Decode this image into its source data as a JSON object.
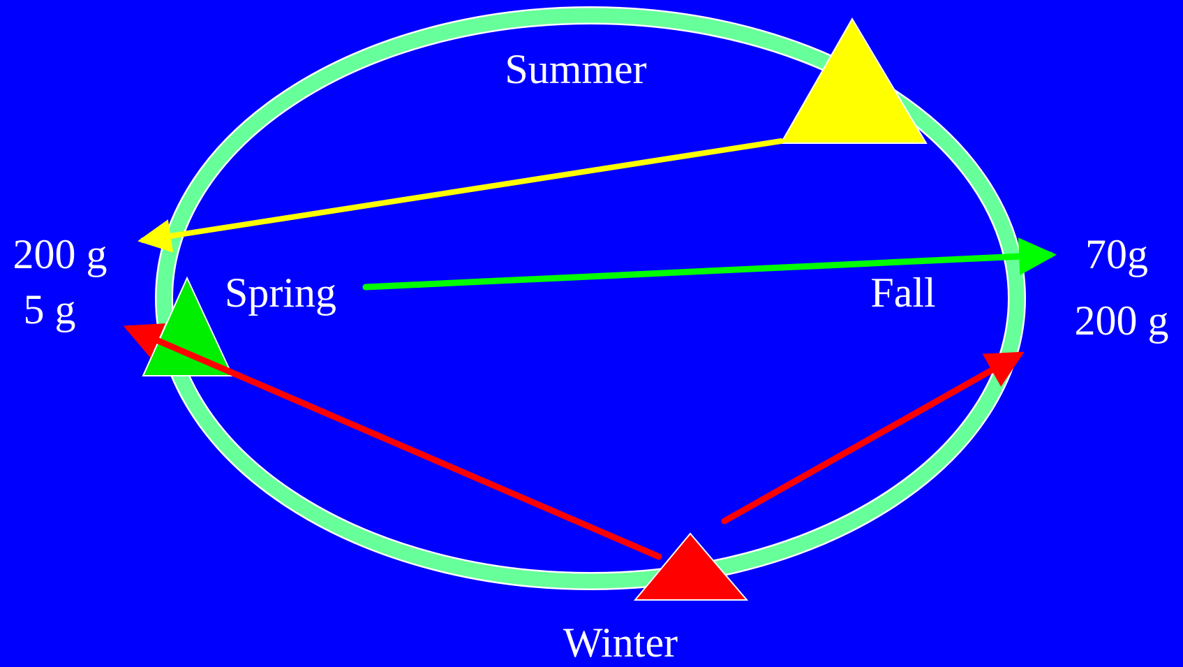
{
  "seasons": {
    "summer": "Summer",
    "spring": "Spring",
    "fall": "Fall",
    "winter": "Winter"
  },
  "left_labels": [
    "200 g",
    "5 g"
  ],
  "right_labels": [
    "70g",
    "200 g"
  ]
}
